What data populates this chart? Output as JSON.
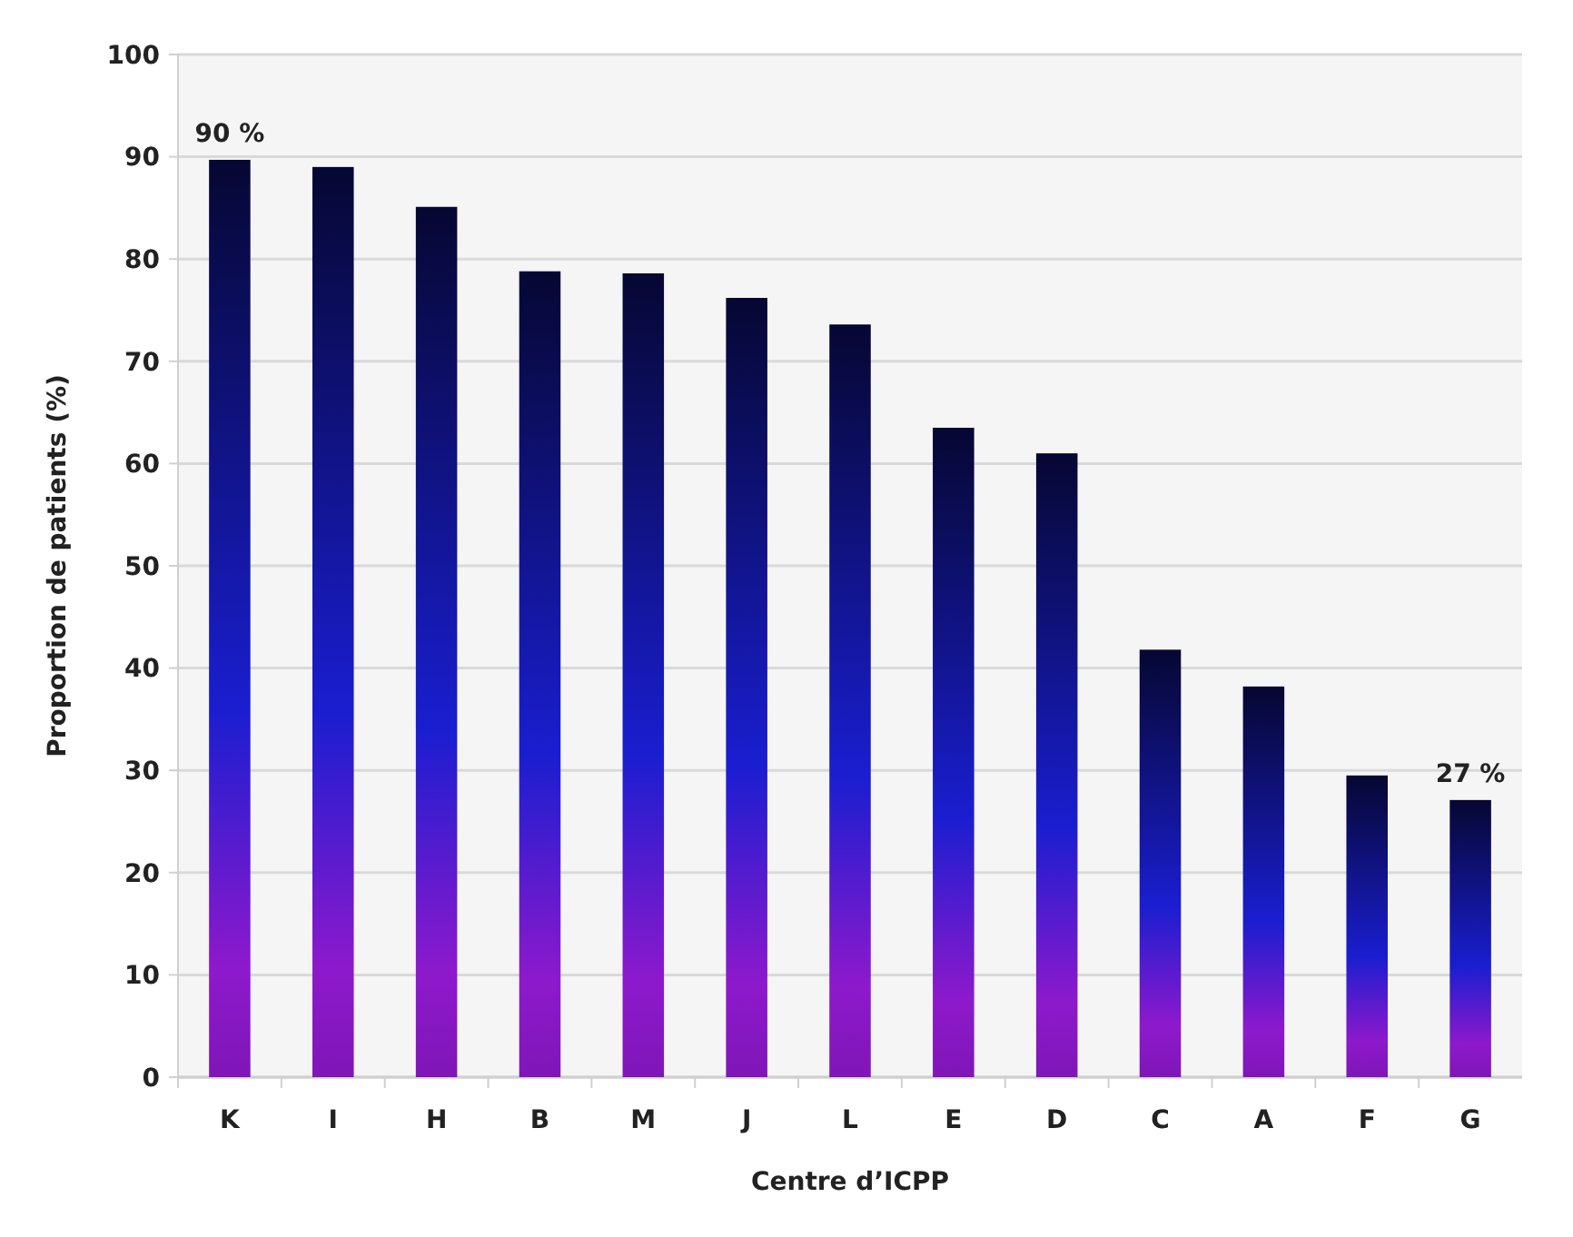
{
  "chart_data": {
    "type": "bar",
    "xlabel": "Centre d’ICPP",
    "ylabel": "Proportion de patients (%)",
    "categories": [
      "K",
      "I",
      "H",
      "B",
      "M",
      "J",
      "L",
      "E",
      "D",
      "C",
      "A",
      "F",
      "G"
    ],
    "values": [
      89.7,
      89.0,
      85.1,
      78.8,
      78.6,
      76.2,
      73.6,
      63.5,
      61.0,
      41.8,
      38.2,
      29.5,
      27.1
    ],
    "color": "#1a1ed0",
    "ylim": [
      0,
      100
    ],
    "yticks": [
      0,
      10,
      20,
      30,
      40,
      50,
      60,
      70,
      80,
      90,
      100
    ],
    "grid": "y",
    "annotations": [
      {
        "text": "90 %",
        "x": "K",
        "y": 89.7
      },
      {
        "text": "27 %",
        "x": "G",
        "y": 27.1
      }
    ]
  }
}
